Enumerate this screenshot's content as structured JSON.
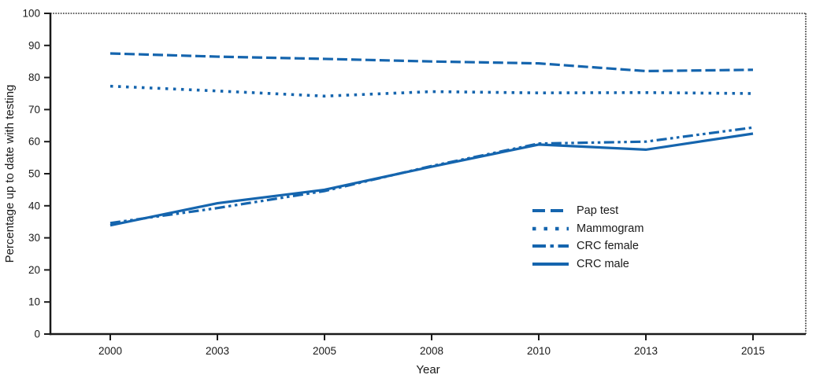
{
  "chart_data": {
    "type": "line",
    "title": "",
    "xlabel": "Year",
    "ylabel": "Percentage up to date with testing",
    "categories": [
      "2000",
      "2003",
      "2005",
      "2008",
      "2010",
      "2013",
      "2015"
    ],
    "series": [
      {
        "name": "Pap test",
        "style": "long-dash",
        "values": [
          87.5,
          86.5,
          85.8,
          85.0,
          84.4,
          82.0,
          82.4
        ]
      },
      {
        "name": "Mammogram",
        "style": "dotted",
        "values": [
          77.3,
          75.8,
          74.2,
          75.6,
          75.2,
          75.3,
          75.0
        ]
      },
      {
        "name": "CRC female",
        "style": "dash-dot-dot",
        "values": [
          34.6,
          39.3,
          44.6,
          52.4,
          59.4,
          60.0,
          64.4
        ]
      },
      {
        "name": "CRC male",
        "style": "solid",
        "values": [
          33.9,
          40.8,
          45.0,
          52.2,
          59.1,
          57.5,
          62.5
        ]
      }
    ],
    "ylim": [
      0,
      100
    ],
    "ytick_step": 10,
    "grid": false,
    "legend_position": "inside-right-middle",
    "line_color": "#1565ae",
    "axis_color": "#1a1a1a"
  }
}
